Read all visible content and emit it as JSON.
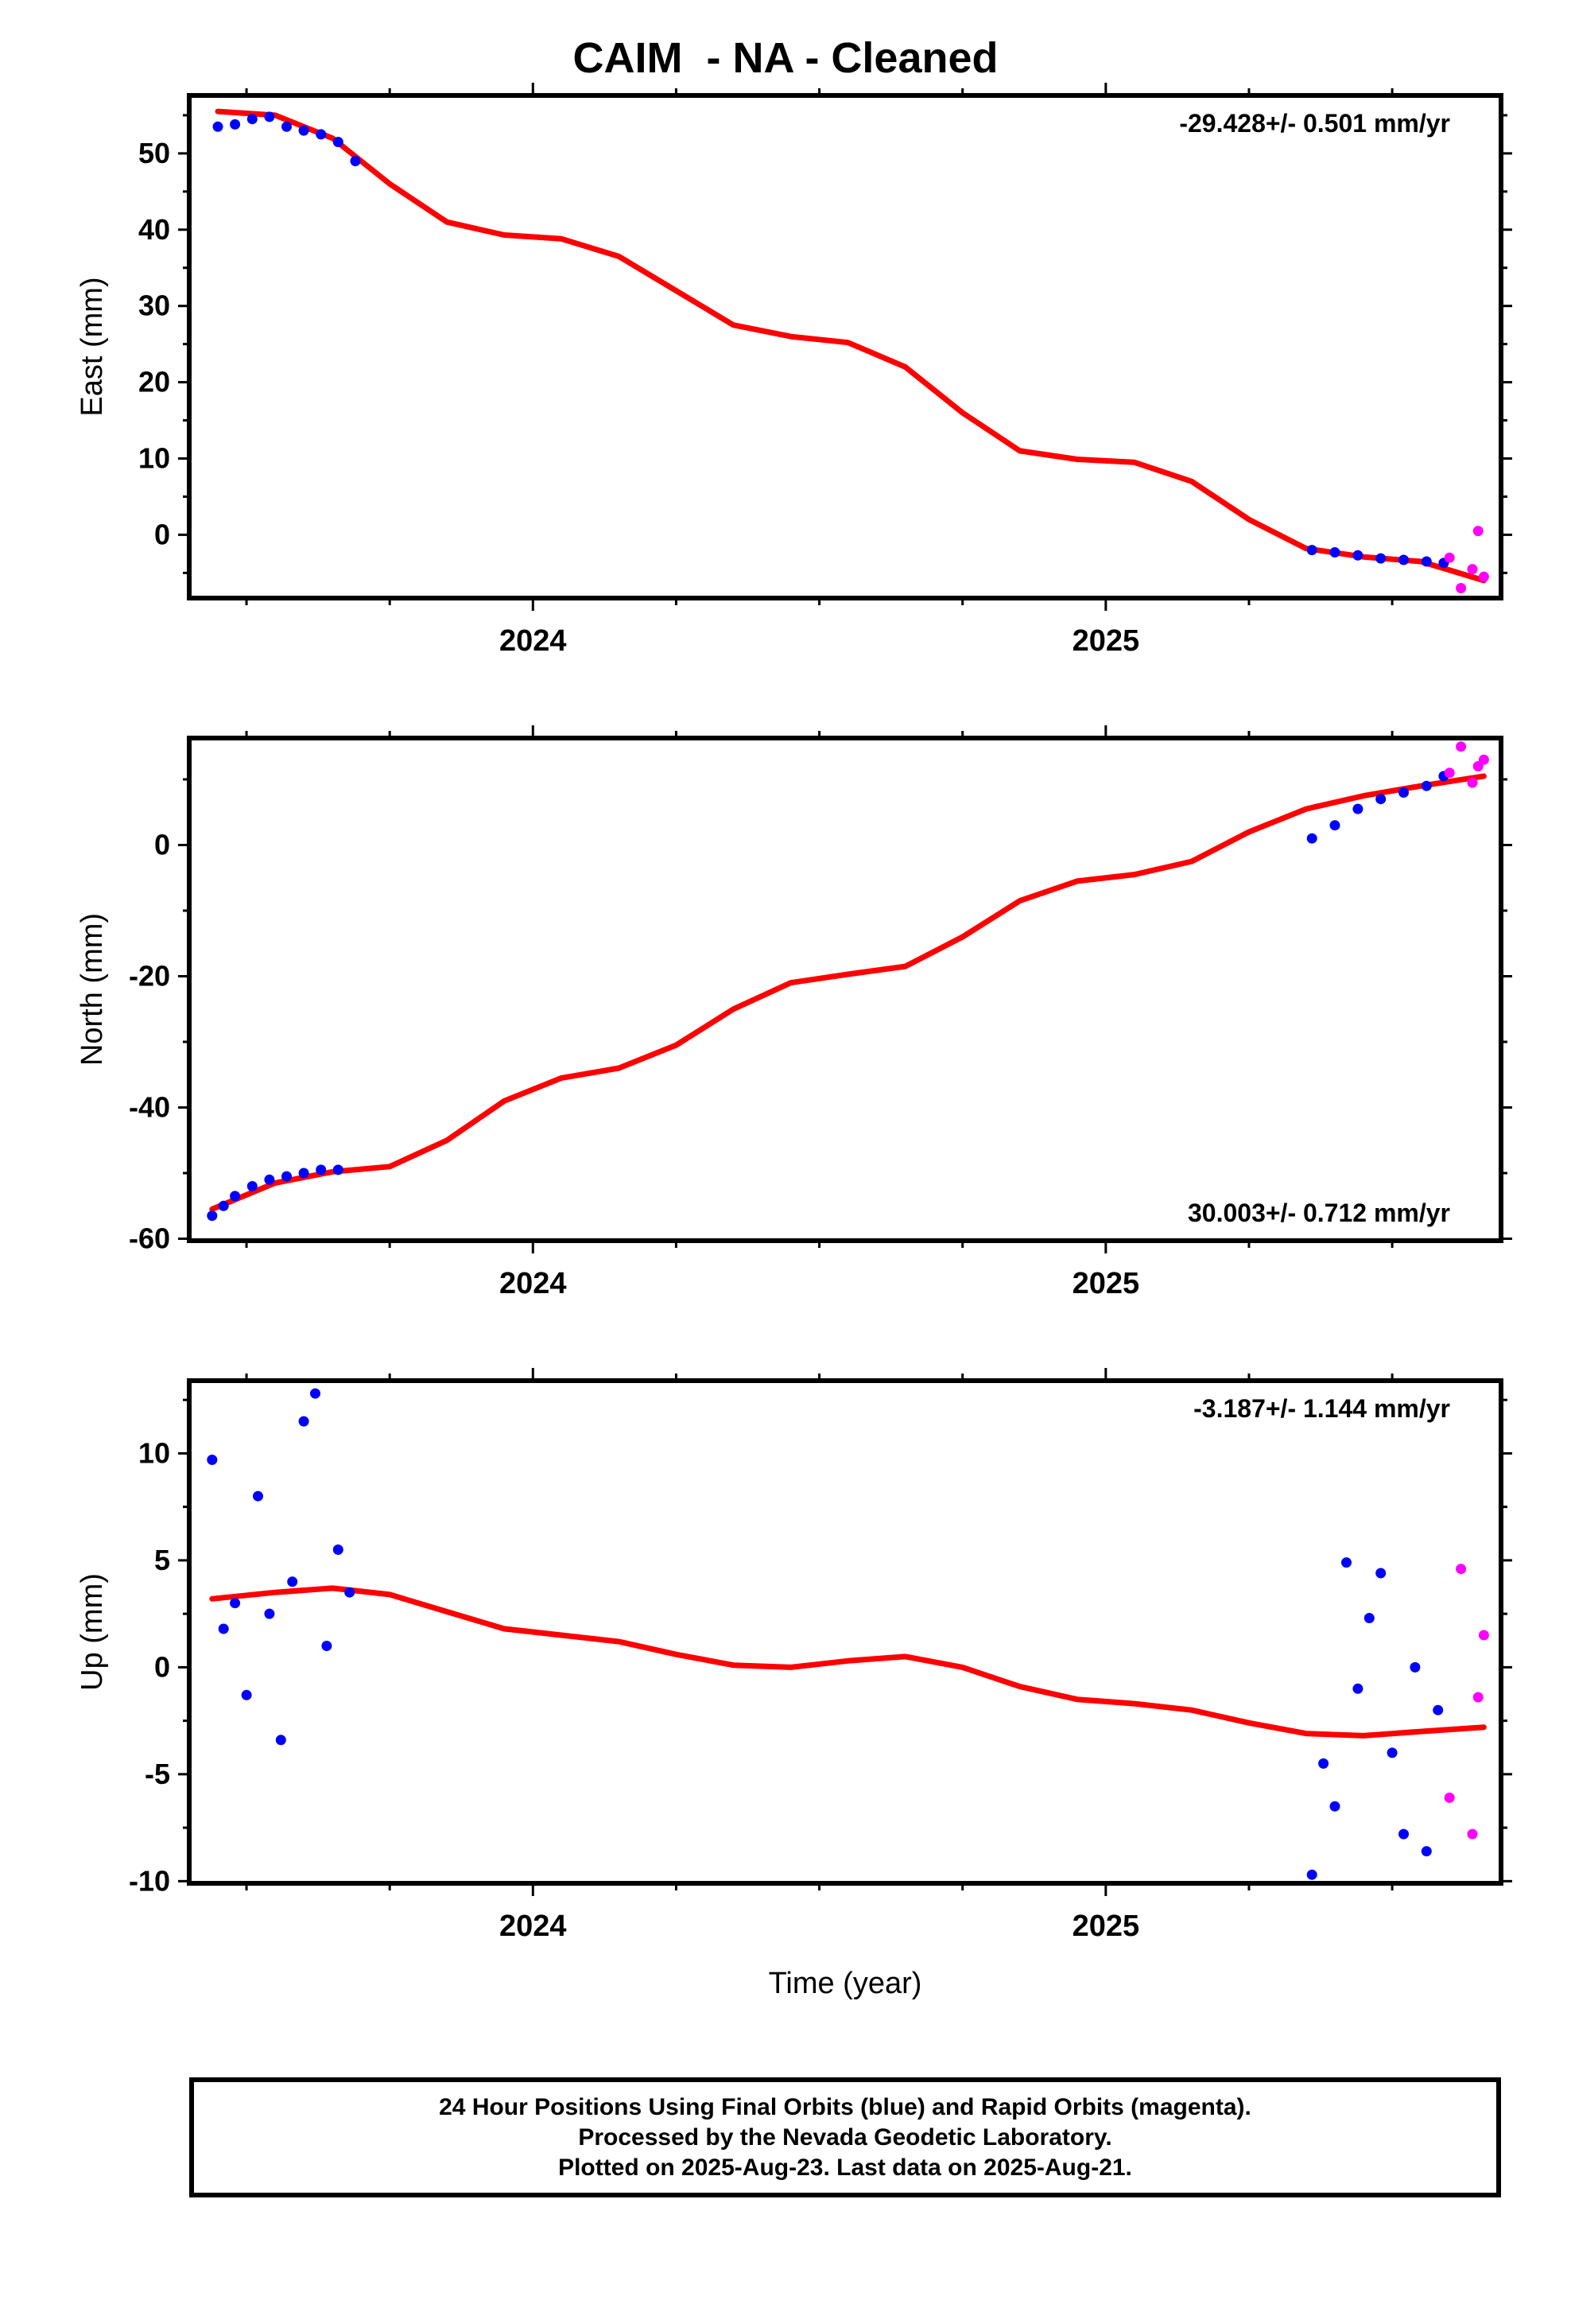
{
  "title": "CAIM  - NA - Cleaned",
  "footer": {
    "line1": "24 Hour Positions Using Final Orbits (blue) and Rapid Orbits (magenta).",
    "line2": "Processed by the Nevada Geodetic Laboratory.",
    "line3": "Plotted on 2025-Aug-23. Last data on 2025-Aug-21."
  },
  "colors": {
    "final": "#0000ff",
    "rapid": "#ff00ff",
    "model": "#ff0000",
    "axes": "#000000",
    "background": "#ffffff"
  },
  "chart_data": [
    {
      "type": "scatter",
      "ylabel": "East (mm)",
      "xlabel": "",
      "annotation": "-29.428+/- 0.501 mm/yr",
      "annotation_position": "top-right",
      "x_range": [
        2023.4,
        2025.69
      ],
      "ylim": [
        -8.3,
        57.6
      ],
      "yticks": [
        0,
        10,
        20,
        30,
        40,
        50
      ],
      "x_ticklabels": [
        "2024",
        "2025"
      ],
      "series": [
        {
          "role": "final",
          "x": [
            2023.45,
            2023.48,
            2023.51,
            2023.54,
            2023.57,
            2023.6,
            2023.63,
            2023.66,
            2023.69,
            2025.36,
            2025.4,
            2025.44,
            2025.48,
            2025.52,
            2025.56,
            2025.59
          ],
          "y": [
            53.5,
            53.8,
            54.5,
            54.8,
            53.5,
            53.0,
            52.5,
            51.5,
            49.0,
            -2.0,
            -2.3,
            -2.7,
            -3.1,
            -3.3,
            -3.5,
            -3.7
          ]
        },
        {
          "role": "rapid",
          "x": [
            2025.6,
            2025.62,
            2025.64,
            2025.65,
            2025.66
          ],
          "y": [
            -3.0,
            -7.0,
            -4.5,
            0.5,
            -5.5
          ]
        },
        {
          "role": "model",
          "x": [
            2023.45,
            2023.55,
            2023.65,
            2023.75,
            2023.85,
            2023.95,
            2024.05,
            2024.15,
            2024.25,
            2024.35,
            2024.45,
            2024.55,
            2024.65,
            2024.75,
            2024.85,
            2024.95,
            2025.05,
            2025.15,
            2025.25,
            2025.35,
            2025.45,
            2025.55,
            2025.66
          ],
          "y": [
            55.5,
            55.0,
            52.0,
            46.0,
            41.0,
            39.3,
            38.8,
            36.5,
            32.0,
            27.5,
            26.0,
            25.2,
            22.0,
            16.0,
            11.0,
            9.9,
            9.5,
            7.0,
            2.0,
            -1.8,
            -2.9,
            -3.5,
            -6.0
          ]
        }
      ]
    },
    {
      "type": "scatter",
      "ylabel": "North (mm)",
      "xlabel": "",
      "annotation": "30.003+/- 0.712 mm/yr",
      "annotation_position": "bottom-right",
      "x_range": [
        2023.4,
        2025.69
      ],
      "ylim": [
        -60.3,
        16.3
      ],
      "yticks": [
        -60,
        -40,
        -20,
        0
      ],
      "x_ticklabels": [
        "2024",
        "2025"
      ],
      "series": [
        {
          "role": "final",
          "x": [
            2023.44,
            2023.46,
            2023.48,
            2023.51,
            2023.54,
            2023.57,
            2023.6,
            2023.63,
            2023.66,
            2025.36,
            2025.4,
            2025.44,
            2025.48,
            2025.52,
            2025.56,
            2025.59
          ],
          "y": [
            -56.5,
            -55.0,
            -53.5,
            -52.0,
            -51.0,
            -50.5,
            -50.0,
            -49.5,
            -49.5,
            1.0,
            3.0,
            5.5,
            7.0,
            8.0,
            9.0,
            10.5
          ]
        },
        {
          "role": "rapid",
          "x": [
            2025.6,
            2025.62,
            2025.64,
            2025.65,
            2025.66
          ],
          "y": [
            11.0,
            15.0,
            9.5,
            12.0,
            13.0
          ]
        },
        {
          "role": "model",
          "x": [
            2023.44,
            2023.55,
            2023.65,
            2023.75,
            2023.85,
            2023.95,
            2024.05,
            2024.15,
            2024.25,
            2024.35,
            2024.45,
            2024.55,
            2024.65,
            2024.75,
            2024.85,
            2024.95,
            2025.05,
            2025.15,
            2025.25,
            2025.35,
            2025.45,
            2025.55,
            2025.66
          ],
          "y": [
            -55.5,
            -51.5,
            -49.8,
            -49.0,
            -45.0,
            -39.0,
            -35.5,
            -34.0,
            -30.5,
            -25.0,
            -21.0,
            -19.7,
            -18.5,
            -14.0,
            -8.5,
            -5.5,
            -4.5,
            -2.5,
            2.0,
            5.5,
            7.5,
            9.0,
            10.5
          ]
        }
      ]
    },
    {
      "type": "scatter",
      "ylabel": "Up (mm)",
      "xlabel": "Time (year)",
      "annotation": "-3.187+/- 1.144 mm/yr",
      "annotation_position": "top-right",
      "x_range": [
        2023.4,
        2025.69
      ],
      "ylim": [
        -10.1,
        13.4
      ],
      "yticks": [
        -10,
        -5,
        0,
        5,
        10
      ],
      "x_ticklabels": [
        "2024",
        "2025"
      ],
      "series": [
        {
          "role": "final",
          "x": [
            2023.44,
            2023.46,
            2023.48,
            2023.5,
            2023.52,
            2023.54,
            2023.56,
            2023.58,
            2023.6,
            2023.62,
            2023.64,
            2023.66,
            2023.68,
            2025.36,
            2025.38,
            2025.4,
            2025.42,
            2025.44,
            2025.46,
            2025.48,
            2025.5,
            2025.52,
            2025.54,
            2025.56,
            2025.58
          ],
          "y": [
            9.7,
            1.8,
            3.0,
            -1.3,
            8.0,
            2.5,
            -3.4,
            4.0,
            11.5,
            12.8,
            1.0,
            5.5,
            3.5,
            -9.7,
            -4.5,
            -6.5,
            4.9,
            -1.0,
            2.3,
            4.4,
            -4.0,
            -7.8,
            0.0,
            -8.6,
            -2.0
          ]
        },
        {
          "role": "rapid",
          "x": [
            2025.6,
            2025.62,
            2025.64,
            2025.65,
            2025.66
          ],
          "y": [
            -6.1,
            4.6,
            -7.8,
            -1.4,
            1.5
          ]
        },
        {
          "role": "model",
          "x": [
            2023.44,
            2023.55,
            2023.65,
            2023.75,
            2023.85,
            2023.95,
            2024.05,
            2024.15,
            2024.25,
            2024.35,
            2024.45,
            2024.55,
            2024.65,
            2024.75,
            2024.85,
            2024.95,
            2025.05,
            2025.15,
            2025.25,
            2025.35,
            2025.45,
            2025.55,
            2025.66
          ],
          "y": [
            3.2,
            3.5,
            3.7,
            3.4,
            2.6,
            1.8,
            1.5,
            1.2,
            0.6,
            0.1,
            0.0,
            0.3,
            0.5,
            0.0,
            -0.9,
            -1.5,
            -1.7,
            -2.0,
            -2.6,
            -3.1,
            -3.2,
            -3.0,
            -2.8
          ]
        }
      ]
    }
  ]
}
